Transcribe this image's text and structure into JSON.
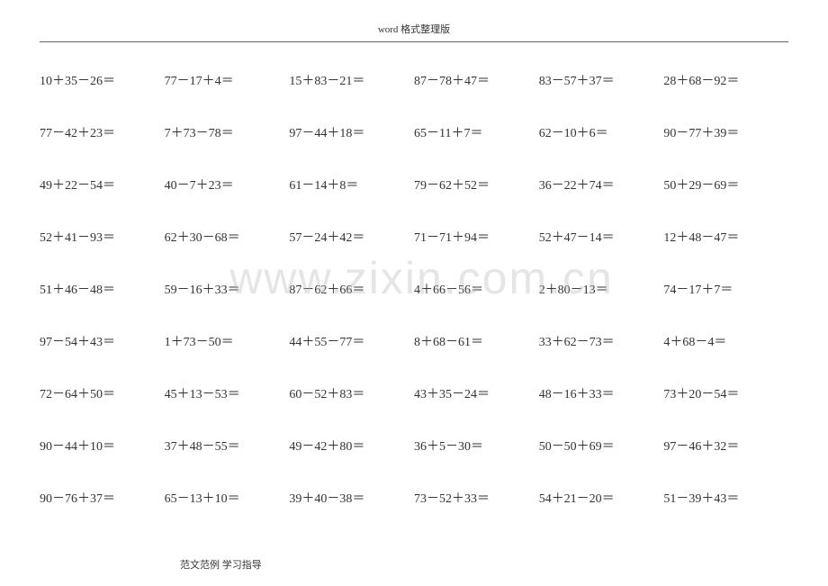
{
  "header_text": "word 格式整理版",
  "footer_text": "范文范例    学习指导",
  "watermark_text": "www.zixin.com.cn",
  "font_size_cell": 14,
  "font_size_header": 11,
  "font_size_footer": 11,
  "text_color": "#333333",
  "background_color": "#ffffff",
  "watermark_color": "rgba(180, 180, 180, 0.35)",
  "rows": [
    [
      "10＋35－26＝",
      "77－17＋4＝",
      "15＋83－21＝",
      "87－78＋47＝",
      "83－57＋37＝",
      "28＋68－92＝"
    ],
    [
      "77－42＋23＝",
      "7＋73－78＝",
      "97－44＋18＝",
      "65－11＋7＝",
      "62－10＋6＝",
      "90－77＋39＝"
    ],
    [
      "49＋22－54＝",
      "40－7＋23＝",
      "61－14＋8＝",
      "79－62＋52＝",
      "36－22＋74＝",
      "50＋29－69＝"
    ],
    [
      "52＋41－93＝",
      "62＋30－68＝",
      "57－24＋42＝",
      "71－71＋94＝",
      "52＋47－14＝",
      "12＋48－47＝"
    ],
    [
      "51＋46－48＝",
      "59－16＋33＝",
      "87－62＋66＝",
      "4＋66－56＝",
      "2＋80－13＝",
      "74－17＋7＝"
    ],
    [
      "97－54＋43＝",
      "1＋73－50＝",
      "44＋55－77＝",
      "8＋68－61＝",
      "33＋62－73＝",
      "4＋68－4＝"
    ],
    [
      "72－64＋50＝",
      "45＋13－53＝",
      "60－52＋83＝",
      "43＋35－24＝",
      "48－16＋33＝",
      "73＋20－54＝"
    ],
    [
      "90－44＋10＝",
      "37＋48－55＝",
      "49－42＋80＝",
      "36＋5－30＝",
      "50－50＋69＝",
      "97－46＋32＝"
    ],
    [
      "90－76＋37＝",
      "65－13＋10＝",
      "39＋40－38＝",
      "73－52＋33＝",
      "54＋21－20＝",
      "51－39＋43＝"
    ]
  ]
}
